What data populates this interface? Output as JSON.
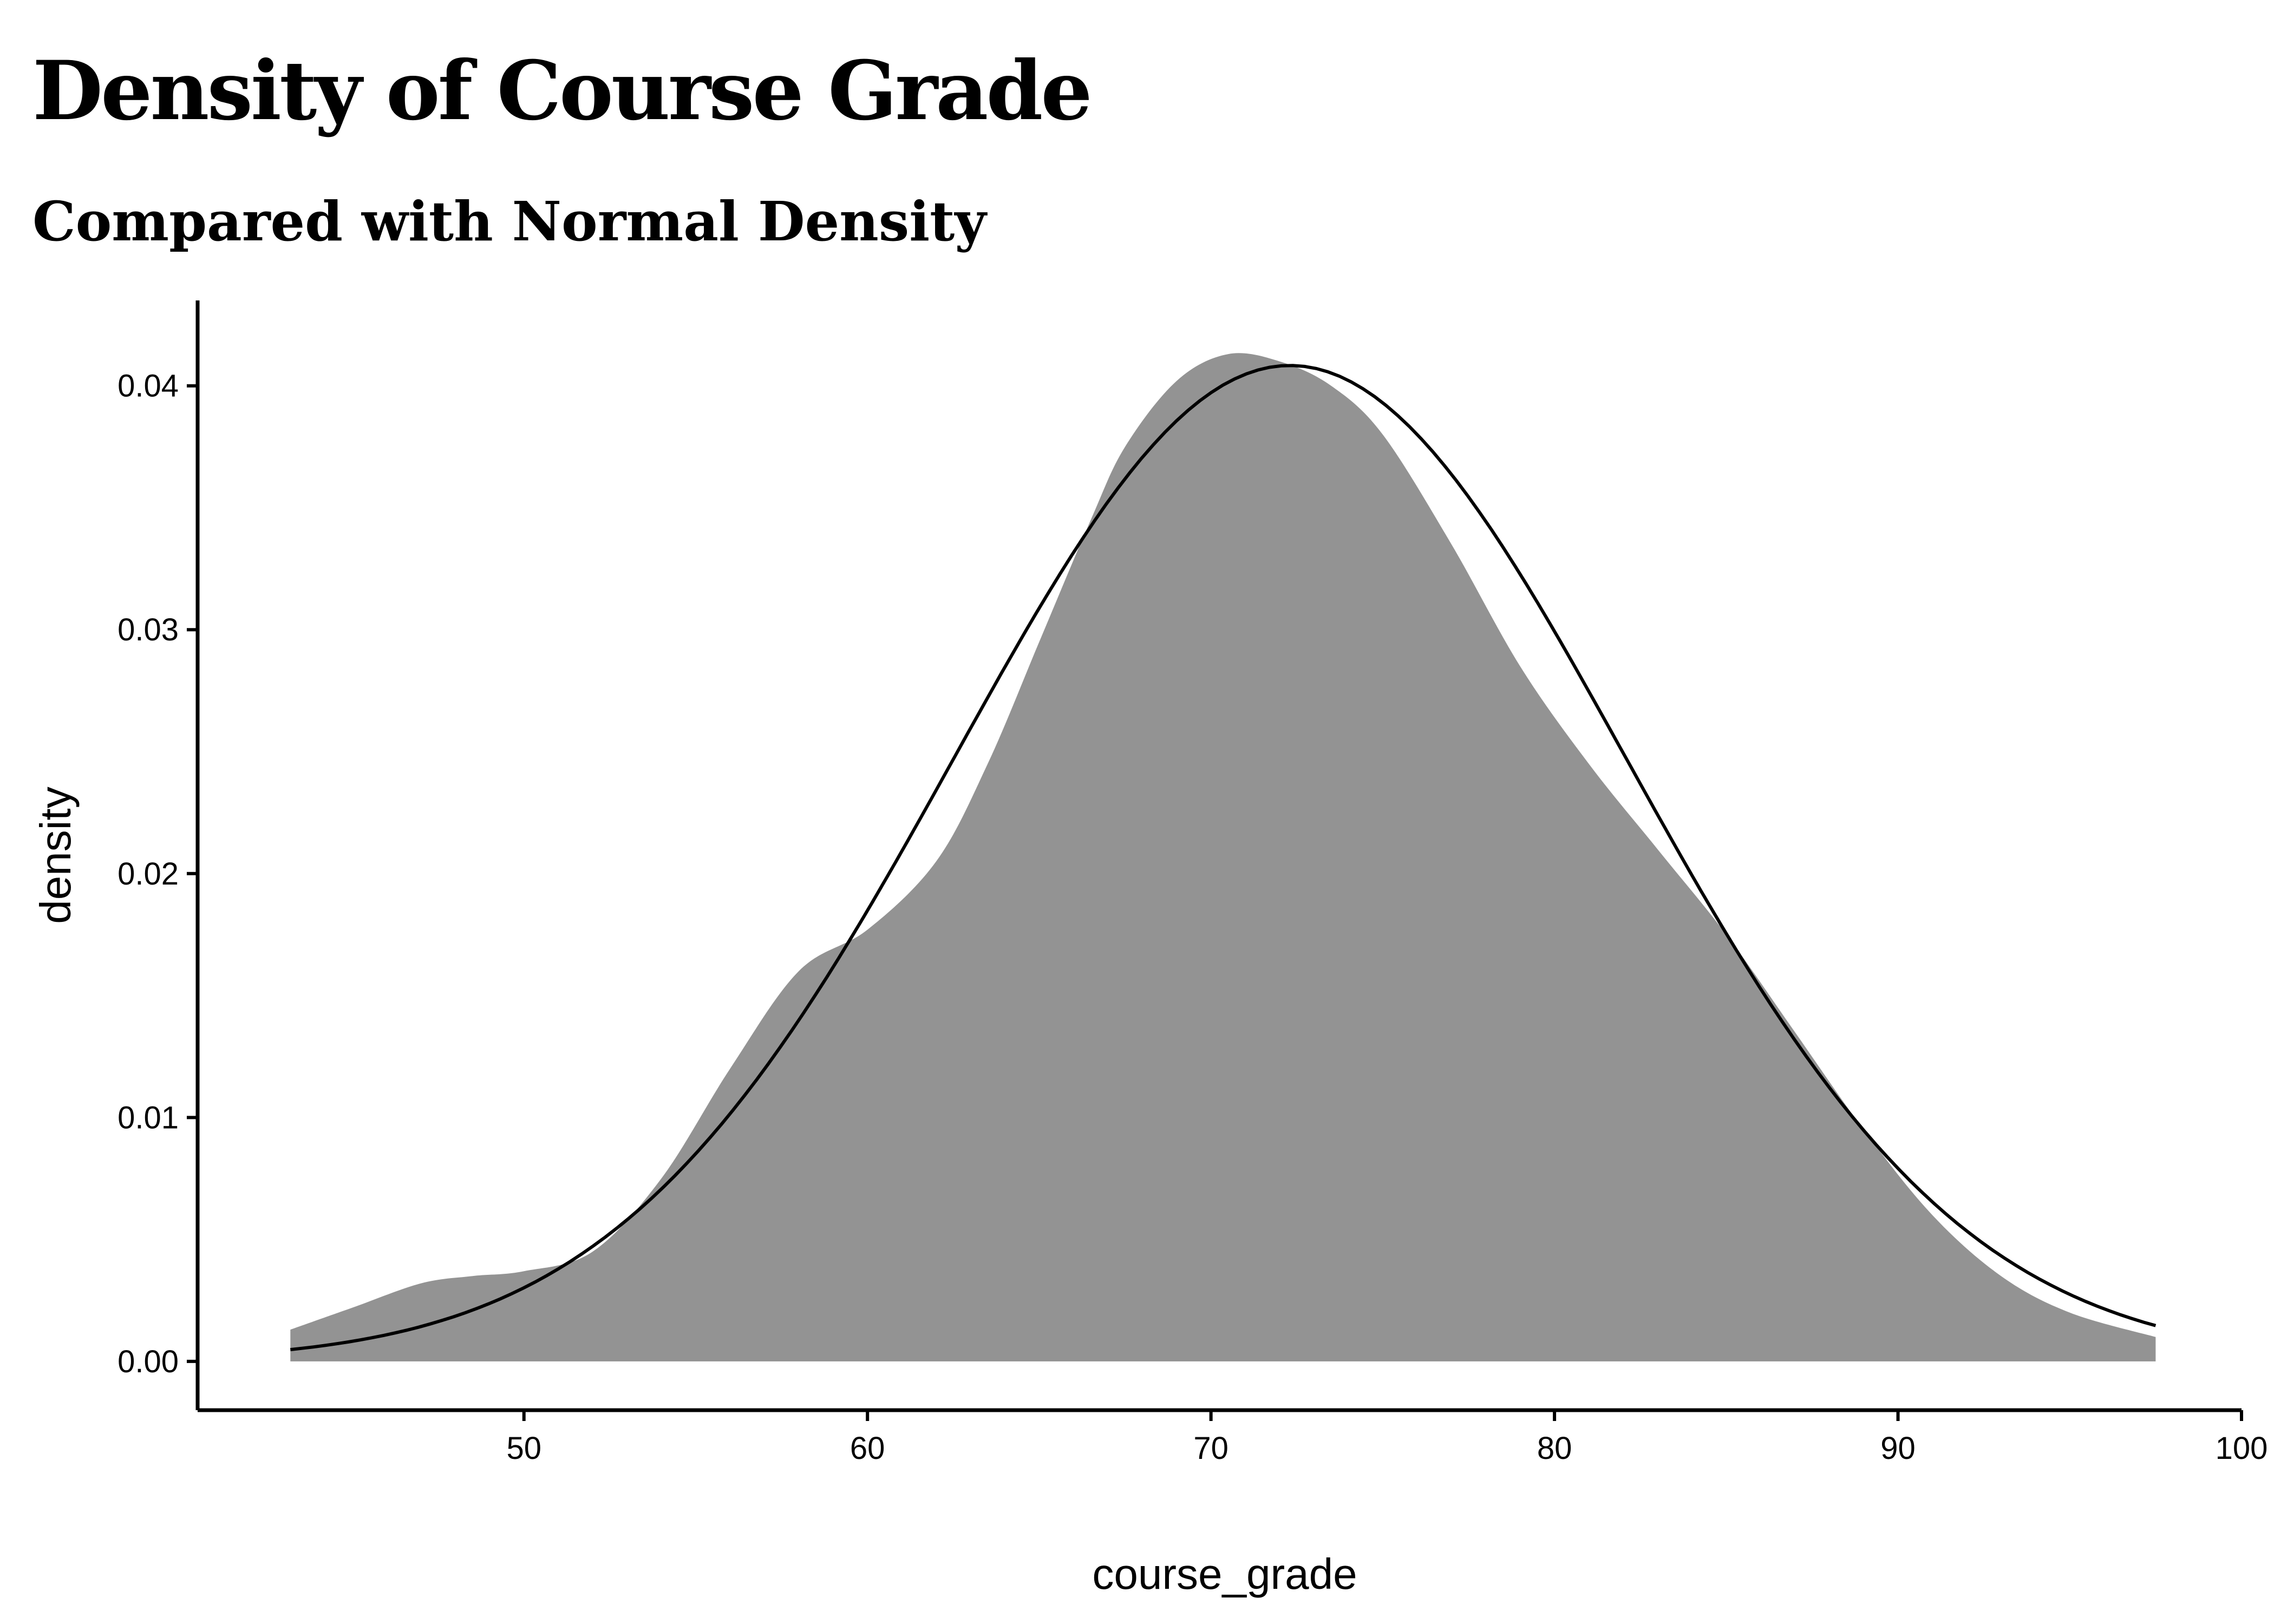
{
  "chart_data": {
    "type": "area",
    "title": "Density of Course Grade",
    "subtitle": "Compared with Normal Density",
    "xlabel": "course_grade",
    "ylabel": "density",
    "xlim": [
      40.5,
      100
    ],
    "ylim": [
      -0.002,
      0.0435
    ],
    "xticks": [
      50,
      60,
      70,
      80,
      90,
      100
    ],
    "yticks": [
      0.0,
      0.01,
      0.02,
      0.03,
      0.04
    ],
    "ytick_labels": [
      "0.00",
      "0.01",
      "0.02",
      "0.03",
      "0.04"
    ],
    "grid": false,
    "legend": "none",
    "series": [
      {
        "kind": "area",
        "color": "#939393",
        "x": [
          43.2,
          45,
          47,
          48.5,
          50,
          52,
          54,
          56,
          58,
          60,
          62,
          63.5,
          65,
          66.5,
          67.5,
          69,
          70.5,
          72,
          73.5,
          75,
          77,
          79,
          81,
          83,
          85,
          87,
          89,
          91,
          93,
          95,
          97.5
        ],
        "y": [
          0.0013,
          0.0022,
          0.0032,
          0.0035,
          0.0037,
          0.0045,
          0.0075,
          0.012,
          0.016,
          0.0177,
          0.0205,
          0.0245,
          0.0295,
          0.0345,
          0.0375,
          0.0402,
          0.0413,
          0.041,
          0.04,
          0.038,
          0.0335,
          0.0285,
          0.0245,
          0.021,
          0.0175,
          0.0135,
          0.0095,
          0.006,
          0.0035,
          0.002,
          0.001
        ]
      },
      {
        "kind": "normal-curve",
        "color": "#000000",
        "mean": 72.3,
        "sd": 9.77,
        "x_range": [
          43.2,
          97.5
        ]
      }
    ]
  }
}
